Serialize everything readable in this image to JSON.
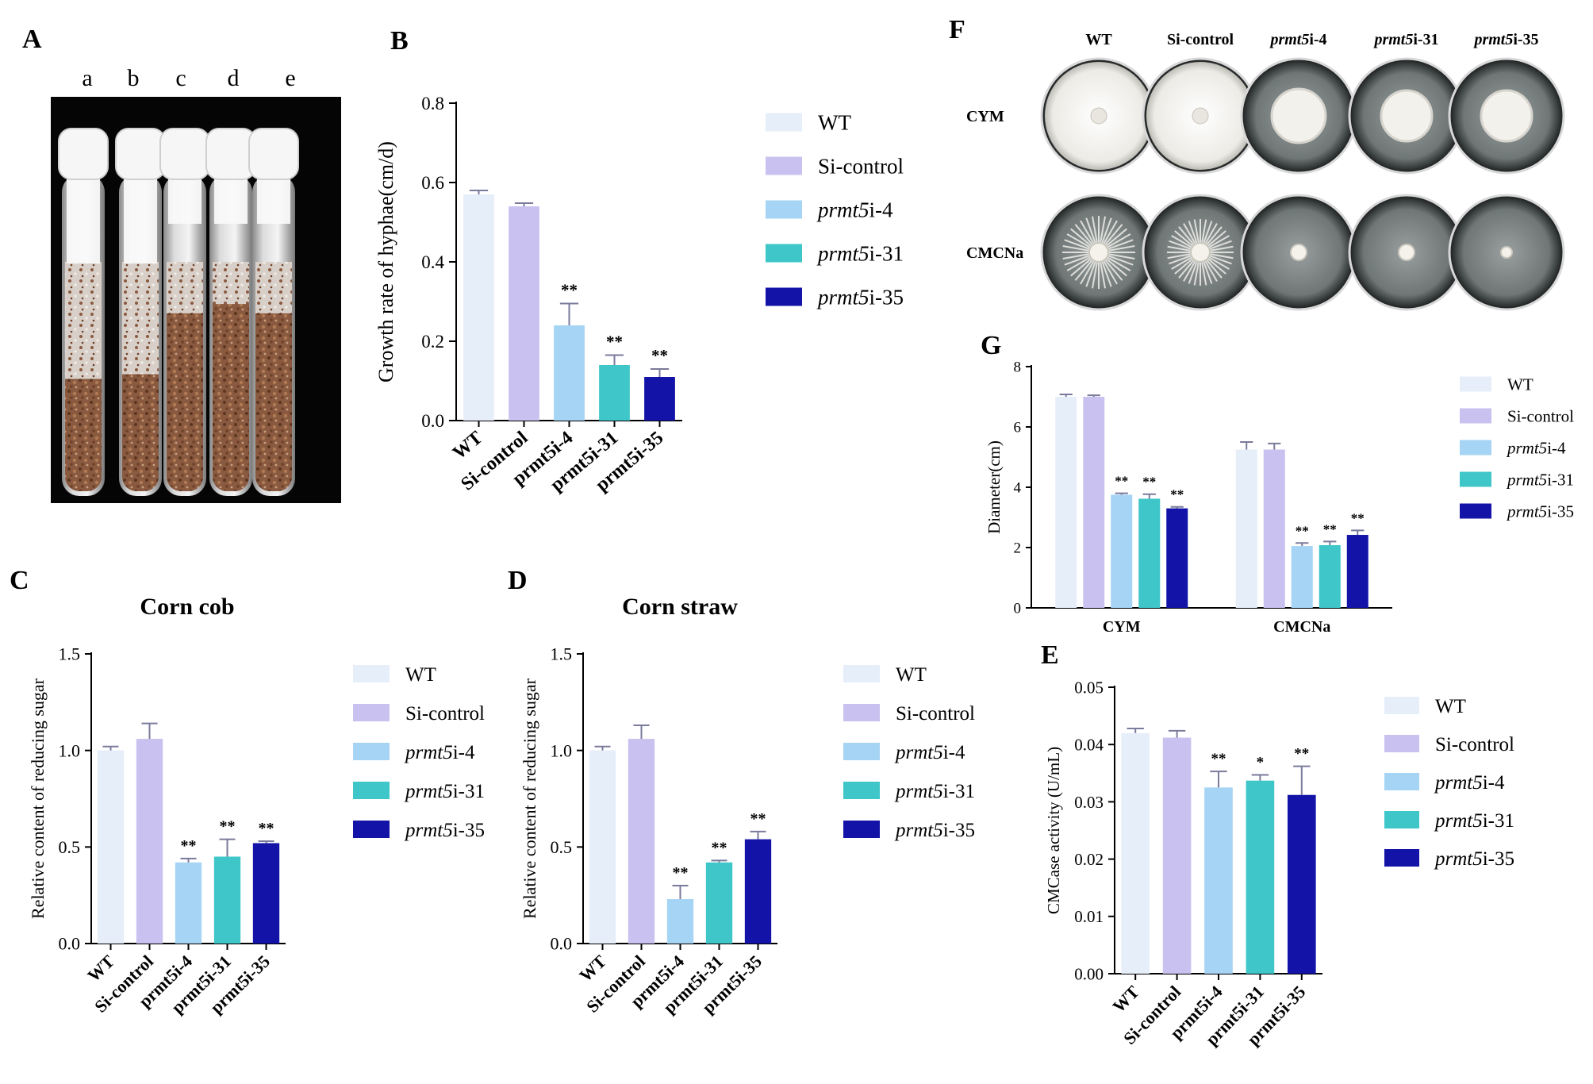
{
  "colors": {
    "WT": "#e6eefa",
    "Si-control": "#c9c2f0",
    "prmt5i-4": "#a6d4f5",
    "prmt5i-31": "#3fc6c9",
    "prmt5i-35": "#1313a8",
    "axis": "#000000",
    "error": "#7a7a9c"
  },
  "photo_a": {
    "panel_letter": "A",
    "tube_labels": [
      "a",
      "b",
      "c",
      "d",
      "e"
    ]
  },
  "photo_f": {
    "panel_letter": "F",
    "column_labels": [
      {
        "prefix": "",
        "italic": "",
        "suffix": "WT"
      },
      {
        "prefix": "",
        "italic": "",
        "suffix": "Si-control"
      },
      {
        "prefix": "",
        "italic": "prmt5",
        "suffix": "i-4"
      },
      {
        "prefix": "",
        "italic": "prmt5",
        "suffix": "i-31"
      },
      {
        "prefix": "",
        "italic": "prmt5",
        "suffix": "i-35"
      }
    ],
    "row_labels": [
      "CYM",
      "CMCNa"
    ]
  },
  "chart_data": [
    {
      "id": "B",
      "type": "bar",
      "panel_letter": "B",
      "title": "",
      "ylabel": "Growth rate of hyphae(cm/d)",
      "ylim": [
        0,
        0.8
      ],
      "yticks": [
        0.0,
        0.2,
        0.4,
        0.6,
        0.8
      ],
      "ytick_labels": [
        "0.0",
        "0.2",
        "0.4",
        "0.6",
        "0.8"
      ],
      "categories": [
        "WT",
        "Si-control",
        "prmt5i-4",
        "prmt5i-31",
        "prmt5i-35"
      ],
      "values": [
        0.57,
        0.54,
        0.24,
        0.14,
        0.11
      ],
      "errors": [
        0.01,
        0.008,
        0.055,
        0.025,
        0.02
      ],
      "significance": [
        "",
        "",
        "**",
        "**",
        "**"
      ],
      "legend": {
        "position": "right",
        "entries": [
          {
            "italic": "",
            "text": "WT"
          },
          {
            "italic": "",
            "text": "Si-control"
          },
          {
            "italic": "prmt5",
            "text": "i-4"
          },
          {
            "italic": "prmt5",
            "text": "i-31"
          },
          {
            "italic": "prmt5",
            "text": "i-35"
          }
        ]
      }
    },
    {
      "id": "C",
      "type": "bar",
      "panel_letter": "C",
      "title": "Corn cob",
      "ylabel": "Relative content of reducing sugar",
      "ylim": [
        0,
        1.5
      ],
      "yticks": [
        0.0,
        0.5,
        1.0,
        1.5
      ],
      "ytick_labels": [
        "0.0",
        "0.5",
        "1.0",
        "1.5"
      ],
      "categories": [
        "WT",
        "Si-control",
        "prmt5i-4",
        "prmt5i-31",
        "prmt5i-35"
      ],
      "values": [
        1.0,
        1.06,
        0.42,
        0.45,
        0.52
      ],
      "errors": [
        0.02,
        0.08,
        0.02,
        0.09,
        0.01
      ],
      "significance": [
        "",
        "",
        "**",
        "**",
        "**"
      ],
      "legend": {
        "position": "right",
        "entries": [
          {
            "italic": "",
            "text": "WT"
          },
          {
            "italic": "",
            "text": "Si-control"
          },
          {
            "italic": "prmt5",
            "text": "i-4"
          },
          {
            "italic": "prmt5",
            "text": "i-31"
          },
          {
            "italic": "prmt5",
            "text": "i-35"
          }
        ]
      }
    },
    {
      "id": "D",
      "type": "bar",
      "panel_letter": "D",
      "title": "Corn straw",
      "ylabel": "Relative content of reducing sugar",
      "ylim": [
        0,
        1.5
      ],
      "yticks": [
        0.0,
        0.5,
        1.0,
        1.5
      ],
      "ytick_labels": [
        "0.0",
        "0.5",
        "1.0",
        "1.5"
      ],
      "categories": [
        "WT",
        "Si-control",
        "prmt5i-4",
        "prmt5i-31",
        "prmt5i-35"
      ],
      "values": [
        1.0,
        1.06,
        0.23,
        0.42,
        0.54
      ],
      "errors": [
        0.02,
        0.07,
        0.07,
        0.01,
        0.04
      ],
      "significance": [
        "",
        "",
        "**",
        "**",
        "**"
      ],
      "legend": {
        "position": "right",
        "entries": [
          {
            "italic": "",
            "text": "WT"
          },
          {
            "italic": "",
            "text": "Si-control"
          },
          {
            "italic": "prmt5",
            "text": "i-4"
          },
          {
            "italic": "prmt5",
            "text": "i-31"
          },
          {
            "italic": "prmt5",
            "text": "i-35"
          }
        ]
      }
    },
    {
      "id": "G",
      "type": "bar",
      "panel_letter": "G",
      "title": "",
      "ylabel": "Diameter(cm)",
      "ylim": [
        0,
        8
      ],
      "yticks": [
        0,
        2,
        4,
        6,
        8
      ],
      "ytick_labels": [
        "0",
        "2",
        "4",
        "6",
        "8"
      ],
      "groups": [
        "CYM",
        "CMCNa"
      ],
      "series": [
        {
          "name": "WT",
          "values": [
            7.0,
            5.25
          ],
          "errors": [
            0.08,
            0.25
          ],
          "significance": [
            "",
            ""
          ]
        },
        {
          "name": "Si-control",
          "values": [
            7.0,
            5.25
          ],
          "errors": [
            0.05,
            0.2
          ],
          "significance": [
            "",
            ""
          ]
        },
        {
          "name": "prmt5i-4",
          "values": [
            3.75,
            2.05
          ],
          "errors": [
            0.05,
            0.1
          ],
          "significance": [
            "**",
            "**"
          ]
        },
        {
          "name": "prmt5i-31",
          "values": [
            3.62,
            2.08
          ],
          "errors": [
            0.15,
            0.12
          ],
          "significance": [
            "**",
            "**"
          ]
        },
        {
          "name": "prmt5i-35",
          "values": [
            3.3,
            2.42
          ],
          "errors": [
            0.05,
            0.15
          ],
          "significance": [
            "**",
            "**"
          ]
        }
      ],
      "legend": {
        "position": "right",
        "entries": [
          {
            "italic": "",
            "text": "WT"
          },
          {
            "italic": "",
            "text": "Si-control"
          },
          {
            "italic": "prmt5",
            "text": "i-4"
          },
          {
            "italic": "prmt5",
            "text": "i-31"
          },
          {
            "italic": "prmt5",
            "text": "i-35"
          }
        ]
      }
    },
    {
      "id": "E",
      "type": "bar",
      "panel_letter": "E",
      "title": "",
      "ylabel": "CMCase activity (U/mL)",
      "ylim": [
        0,
        0.05
      ],
      "yticks": [
        0.0,
        0.01,
        0.02,
        0.03,
        0.04,
        0.05
      ],
      "ytick_labels": [
        "0.00",
        "0.01",
        "0.02",
        "0.03",
        "0.04",
        "0.05"
      ],
      "categories": [
        "WT",
        "Si-control",
        "prmt5i-4",
        "prmt5i-31",
        "prmt5i-35"
      ],
      "values": [
        0.042,
        0.0412,
        0.0325,
        0.0337,
        0.0312
      ],
      "errors": [
        0.0008,
        0.0012,
        0.0028,
        0.001,
        0.005
      ],
      "significance": [
        "",
        "",
        "**",
        "*",
        "**"
      ],
      "legend": {
        "position": "right",
        "entries": [
          {
            "italic": "",
            "text": "WT"
          },
          {
            "italic": "",
            "text": "Si-control"
          },
          {
            "italic": "prmt5",
            "text": "i-4"
          },
          {
            "italic": "prmt5",
            "text": "i-31"
          },
          {
            "italic": "prmt5",
            "text": "i-35"
          }
        ]
      }
    }
  ]
}
